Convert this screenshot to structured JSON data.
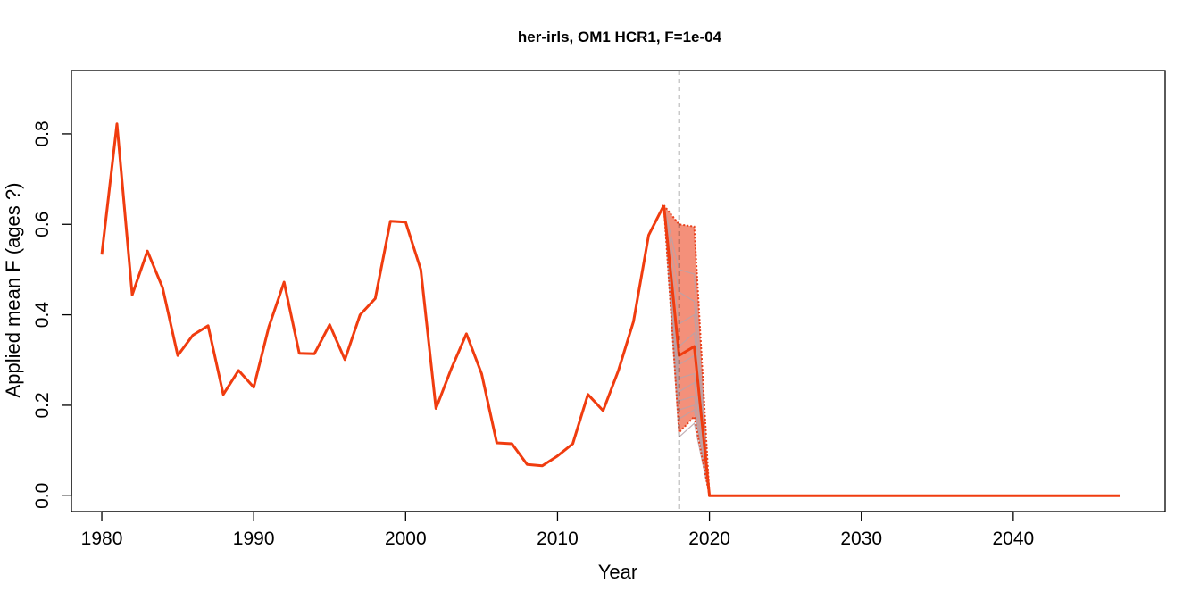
{
  "chart_data": {
    "type": "line",
    "title": "her-irls, OM1 HCR1, F=1e-04",
    "xlabel": "Year",
    "ylabel": "Applied mean F (ages ?)",
    "xlim": [
      1978,
      2050
    ],
    "ylim": [
      -0.035,
      0.94
    ],
    "x_ticks": [
      1980,
      1990,
      2000,
      2010,
      2020,
      2030,
      2040
    ],
    "y_ticks": [
      0.0,
      0.2,
      0.4,
      0.6,
      0.8
    ],
    "y_tick_labels": [
      "0.0",
      "0.2",
      "0.4",
      "0.6",
      "0.8"
    ],
    "grid": false,
    "reference_line": {
      "x": 2018,
      "style": "dashed"
    },
    "colors": {
      "median": "#f03c0f",
      "band_fill": "#f4907a",
      "band_edge": "#e8401c",
      "iterations": "#b8a2a8",
      "reference": "#000000"
    },
    "series": [
      {
        "role": "history",
        "x": [
          1980,
          1981,
          1982,
          1983,
          1984,
          1985,
          1986,
          1987,
          1988,
          1989,
          1990,
          1991,
          1992,
          1993,
          1994,
          1995,
          1996,
          1997,
          1998,
          1999,
          2000,
          2001,
          2002,
          2003,
          2004,
          2005,
          2006,
          2007,
          2008,
          2009,
          2010,
          2011,
          2012,
          2013,
          2014,
          2015,
          2016,
          2017
        ],
        "y": [
          0.533,
          0.822,
          0.444,
          0.541,
          0.46,
          0.31,
          0.355,
          0.376,
          0.224,
          0.277,
          0.24,
          0.374,
          0.472,
          0.315,
          0.314,
          0.378,
          0.301,
          0.4,
          0.436,
          0.607,
          0.605,
          0.5,
          0.193,
          0.28,
          0.358,
          0.27,
          0.117,
          0.115,
          0.069,
          0.066,
          0.088,
          0.115,
          0.224,
          0.188,
          0.276,
          0.385,
          0.576,
          0.642
        ]
      },
      {
        "role": "median",
        "x": [
          2017,
          2018,
          2019,
          2020,
          2030,
          2040,
          2047
        ],
        "y": [
          0.642,
          0.31,
          0.33,
          0.0,
          0.0,
          0.0,
          0.0
        ]
      }
    ],
    "band": {
      "x": [
        2017,
        2018,
        2019,
        2020
      ],
      "upper": [
        0.642,
        0.6,
        0.595,
        0.0
      ],
      "lower": [
        0.642,
        0.14,
        0.175,
        0.0
      ]
    },
    "iterations": [
      [
        0.642,
        0.5,
        0.49,
        0.0
      ],
      [
        0.642,
        0.45,
        0.43,
        0.0
      ],
      [
        0.642,
        0.38,
        0.4,
        0.0
      ],
      [
        0.642,
        0.33,
        0.36,
        0.0
      ],
      [
        0.642,
        0.29,
        0.31,
        0.0
      ],
      [
        0.642,
        0.26,
        0.27,
        0.0
      ],
      [
        0.642,
        0.23,
        0.25,
        0.0
      ],
      [
        0.642,
        0.21,
        0.22,
        0.0
      ],
      [
        0.642,
        0.19,
        0.2,
        0.0
      ],
      [
        0.642,
        0.17,
        0.19,
        0.0
      ],
      [
        0.642,
        0.13,
        0.16,
        0.0
      ]
    ]
  }
}
